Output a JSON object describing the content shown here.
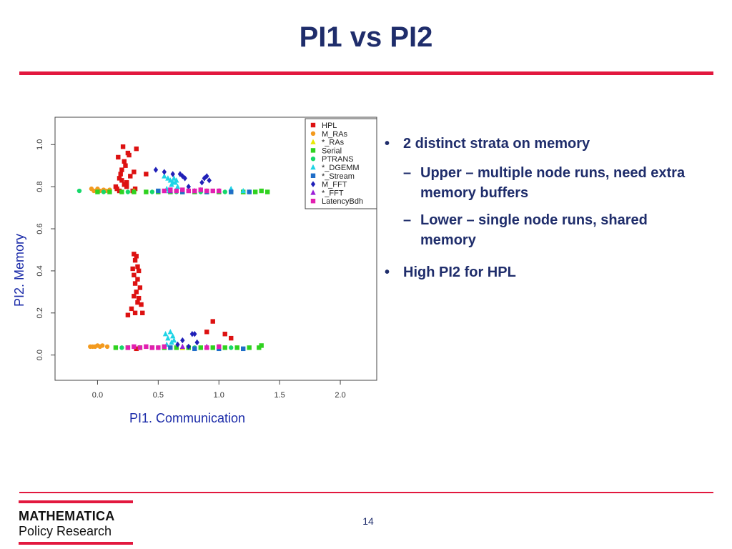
{
  "slide": {
    "title": "PI1 vs PI2",
    "page_number": "14"
  },
  "bullets": [
    {
      "text": "2 distinct strata on memory",
      "subs": [
        "Upper – multiple node runs, need extra memory buffers",
        "Lower – single node runs, shared memory"
      ]
    },
    {
      "text": "High PI2 for HPL",
      "subs": []
    }
  ],
  "logo": {
    "line1": "MATHEMATICA",
    "line2": "Policy Research"
  },
  "chart_data": {
    "type": "scatter",
    "xlabel": "PI1. Communication",
    "ylabel": "PI2. Memory",
    "xlim": [
      -0.35,
      2.3
    ],
    "ylim": [
      -0.12,
      1.13
    ],
    "xticks": [
      0.0,
      0.5,
      1.0,
      1.5,
      2.0
    ],
    "xtick_labels": [
      "0.0",
      "0.5",
      "1.0",
      "1.5",
      "2.0"
    ],
    "yticks": [
      0.0,
      0.2,
      0.4,
      0.6,
      0.8,
      1.0
    ],
    "ytick_labels": [
      "0.0",
      "0.2",
      "0.4",
      "0.6",
      "0.8",
      "1.0"
    ],
    "legend_position": "top-right",
    "series": [
      {
        "name": "HPL",
        "color": "#dd1111",
        "marker": "square",
        "x": [
          0.15,
          0.18,
          0.2,
          0.22,
          0.25,
          0.17,
          0.21,
          0.23,
          0.19,
          0.24,
          0.26,
          0.2,
          0.22,
          0.3,
          0.32,
          0.4,
          0.16,
          0.18,
          0.24,
          0.27,
          0.29,
          0.31,
          0.3,
          0.32,
          0.31,
          0.33,
          0.29,
          0.34,
          0.3,
          0.33,
          0.31,
          0.35,
          0.32,
          0.3,
          0.34,
          0.33,
          0.36,
          0.28,
          0.31,
          0.25,
          0.37,
          0.32,
          0.95,
          0.9,
          1.05,
          1.1
        ],
        "y": [
          0.8,
          0.84,
          0.88,
          0.92,
          0.96,
          0.94,
          0.99,
          0.9,
          0.86,
          0.82,
          0.95,
          0.83,
          0.81,
          0.87,
          0.98,
          0.86,
          0.79,
          0.78,
          0.8,
          0.85,
          0.78,
          0.79,
          0.48,
          0.47,
          0.45,
          0.42,
          0.41,
          0.4,
          0.38,
          0.36,
          0.34,
          0.32,
          0.3,
          0.28,
          0.27,
          0.25,
          0.24,
          0.22,
          0.2,
          0.19,
          0.2,
          0.03,
          0.16,
          0.11,
          0.1,
          0.08
        ]
      },
      {
        "name": "M_RAs",
        "color": "#f39a1e",
        "marker": "circle",
        "x": [
          -0.05,
          0.0,
          0.05,
          0.1,
          -0.03,
          0.02,
          0.07,
          -0.06,
          -0.04,
          -0.02,
          0.0,
          0.02,
          0.04,
          0.08
        ],
        "y": [
          0.79,
          0.79,
          0.785,
          0.785,
          0.78,
          0.78,
          0.78,
          0.04,
          0.04,
          0.04,
          0.045,
          0.04,
          0.045,
          0.04
        ]
      },
      {
        "name": "*_RAs",
        "color": "#e8e800",
        "marker": "triangle",
        "x": [
          0.3,
          0.6,
          0.9,
          1.2,
          0.35,
          0.7,
          1.0
        ],
        "y": [
          0.78,
          0.78,
          0.78,
          0.775,
          0.035,
          0.035,
          0.04
        ]
      },
      {
        "name": "Serial",
        "color": "#2fd21f",
        "marker": "square",
        "x": [
          0.0,
          0.1,
          0.2,
          0.3,
          0.4,
          0.5,
          0.6,
          0.7,
          0.8,
          0.9,
          1.0,
          1.1,
          1.2,
          1.3,
          1.35,
          1.4,
          0.15,
          0.25,
          0.35,
          0.45,
          0.55,
          0.65,
          0.75,
          0.85,
          0.95,
          1.05,
          1.15,
          1.25,
          1.33,
          1.35
        ],
        "y": [
          0.775,
          0.775,
          0.775,
          0.775,
          0.775,
          0.775,
          0.775,
          0.775,
          0.775,
          0.775,
          0.775,
          0.775,
          0.775,
          0.775,
          0.78,
          0.775,
          0.035,
          0.035,
          0.035,
          0.035,
          0.035,
          0.035,
          0.035,
          0.035,
          0.035,
          0.035,
          0.035,
          0.035,
          0.035,
          0.045
        ]
      },
      {
        "name": "PTRANS",
        "color": "#16d86a",
        "marker": "circle",
        "x": [
          -0.15,
          0.05,
          0.25,
          0.45,
          0.65,
          0.85,
          1.05,
          1.25,
          0.2,
          0.5,
          0.8,
          1.1
        ],
        "y": [
          0.78,
          0.775,
          0.775,
          0.775,
          0.775,
          0.775,
          0.775,
          0.775,
          0.035,
          0.035,
          0.035,
          0.035
        ]
      },
      {
        "name": "*_DGEMM",
        "color": "#1fd4e6",
        "marker": "triangle",
        "x": [
          0.55,
          0.58,
          0.6,
          0.62,
          0.64,
          0.66,
          0.57,
          0.61,
          0.63,
          0.59,
          0.65,
          0.56,
          0.6,
          0.62,
          0.58,
          0.63,
          0.61,
          0.57,
          1.1,
          1.2,
          0.85
        ],
        "y": [
          0.85,
          0.84,
          0.83,
          0.82,
          0.82,
          0.8,
          0.79,
          0.81,
          0.84,
          0.78,
          0.83,
          0.1,
          0.11,
          0.09,
          0.08,
          0.07,
          0.06,
          0.05,
          0.79,
          0.78,
          0.785
        ]
      },
      {
        "name": "*_Stream",
        "color": "#1f6ec8",
        "marker": "square",
        "x": [
          0.5,
          0.7,
          0.9,
          1.1,
          1.25,
          0.6,
          0.8,
          1.0,
          1.2
        ],
        "y": [
          0.78,
          0.775,
          0.775,
          0.775,
          0.775,
          0.035,
          0.03,
          0.03,
          0.03
        ]
      },
      {
        "name": "M_FFT",
        "color": "#2020b8",
        "marker": "diamond",
        "x": [
          0.48,
          0.55,
          0.62,
          0.68,
          0.7,
          0.72,
          0.75,
          0.88,
          0.9,
          0.92,
          0.86,
          0.78,
          0.8,
          0.82,
          0.7,
          0.75,
          0.66
        ],
        "y": [
          0.88,
          0.87,
          0.86,
          0.86,
          0.85,
          0.84,
          0.8,
          0.84,
          0.85,
          0.83,
          0.82,
          0.1,
          0.1,
          0.06,
          0.07,
          0.04,
          0.05
        ]
      },
      {
        "name": "*_FFT",
        "color": "#9b1fd8",
        "marker": "triangle",
        "x": [
          0.6,
          0.8,
          1.0,
          0.7,
          0.9
        ],
        "y": [
          0.78,
          0.78,
          0.78,
          0.04,
          0.04
        ]
      },
      {
        "name": "LatencyBdh",
        "color": "#e21fb0",
        "marker": "square",
        "x": [
          0.55,
          0.6,
          0.65,
          0.7,
          0.75,
          0.8,
          0.85,
          0.9,
          0.95,
          1.0,
          0.25,
          0.3,
          0.35,
          0.4,
          0.45,
          0.5,
          0.55,
          0.9,
          1.0
        ],
        "y": [
          0.78,
          0.785,
          0.78,
          0.785,
          0.78,
          0.78,
          0.785,
          0.78,
          0.78,
          0.78,
          0.035,
          0.04,
          0.035,
          0.04,
          0.035,
          0.035,
          0.04,
          0.035,
          0.04
        ]
      }
    ]
  }
}
